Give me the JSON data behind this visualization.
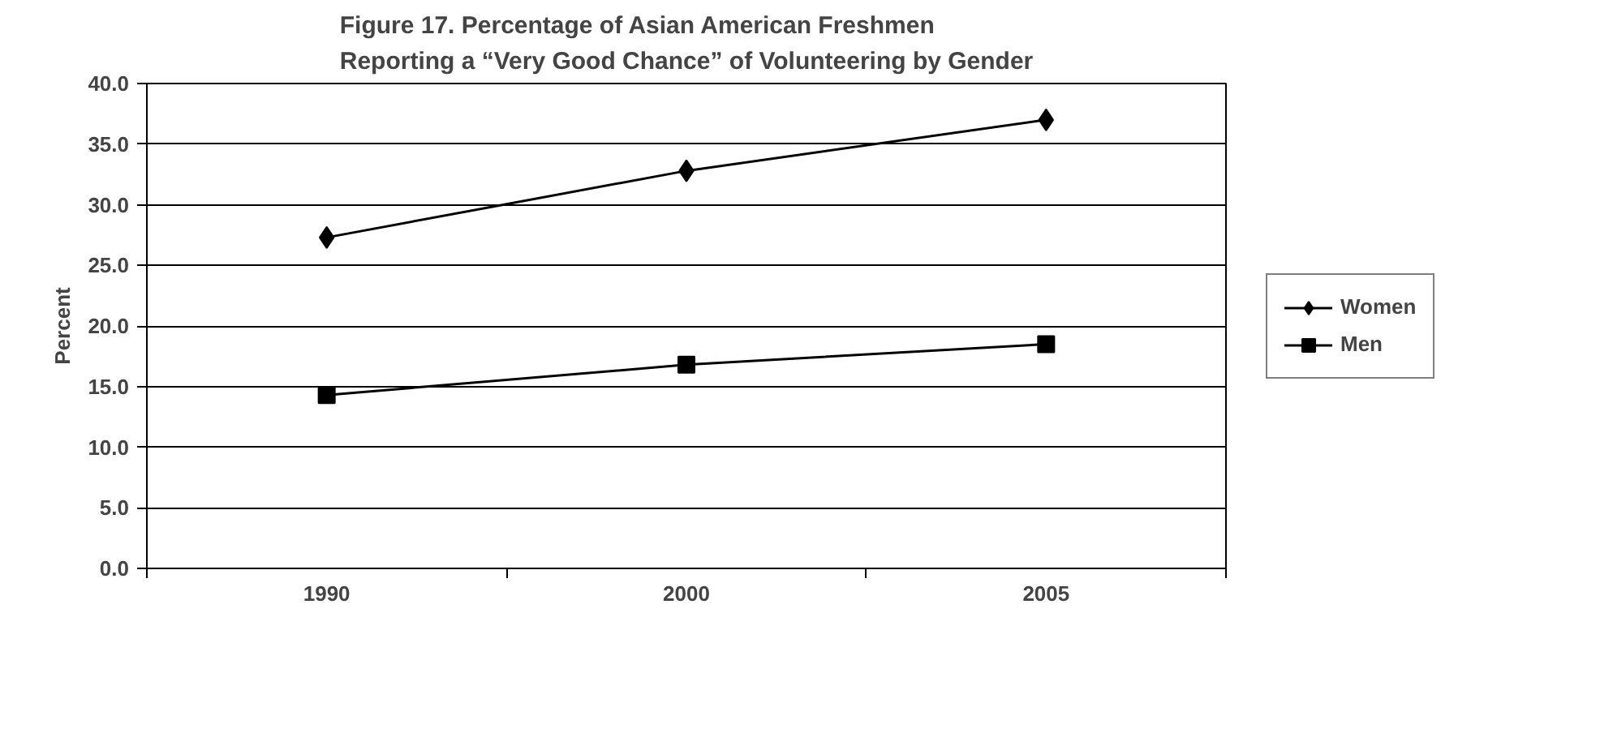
{
  "chart_data": {
    "type": "line",
    "title": "Figure 17. Percentage of Asian American Freshmen\nReporting a “Very Good Chance” of Volunteering by Gender",
    "ylabel": "Percent",
    "categories": [
      "1990",
      "2000",
      "2005"
    ],
    "series": [
      {
        "name": "Women",
        "color": "#000000",
        "marker": "diamond",
        "values": [
          27.3,
          32.8,
          37.0
        ]
      },
      {
        "name": "Men",
        "color": "#000000",
        "marker": "square",
        "values": [
          14.3,
          16.8,
          18.5
        ]
      }
    ],
    "ylim": [
      0,
      40
    ],
    "yticks": [
      {
        "value": 0,
        "label": "0.0"
      },
      {
        "value": 5,
        "label": "5.0"
      },
      {
        "value": 10,
        "label": "10.0"
      },
      {
        "value": 15,
        "label": "15.0"
      },
      {
        "value": 20,
        "label": "20.0"
      },
      {
        "value": 25,
        "label": "25.0"
      },
      {
        "value": 30,
        "label": "30.0"
      },
      {
        "value": 35,
        "label": "35.0"
      },
      {
        "value": 40,
        "label": "40.0"
      }
    ],
    "grid": "y",
    "legend": "right",
    "line_style": "solid"
  }
}
